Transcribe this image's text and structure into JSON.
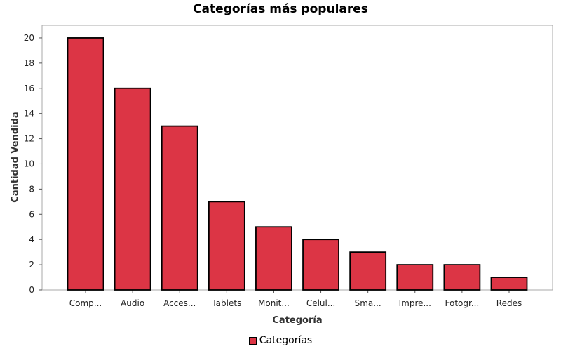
{
  "chart_data": {
    "type": "bar",
    "title": "Categorías más populares",
    "xlabel": "Categoría",
    "ylabel": "Cantidad Vendida",
    "categories": [
      "Comp...",
      "Audio",
      "Acces...",
      "Tablets",
      "Monit...",
      "Celul...",
      "Sma...",
      "Impre...",
      "Fotogr...",
      "Redes"
    ],
    "series": [
      {
        "name": "Categorías",
        "values": [
          20,
          16,
          13,
          7,
          5,
          4,
          3,
          2,
          2,
          1
        ]
      }
    ],
    "ylim": [
      0,
      21
    ],
    "yticks": [
      "0",
      "2",
      "4",
      "6",
      "8",
      "10",
      "12",
      "14",
      "16",
      "18",
      "20"
    ],
    "grid": false,
    "legend": "bottom-center",
    "bar_color": "#dc3545"
  }
}
